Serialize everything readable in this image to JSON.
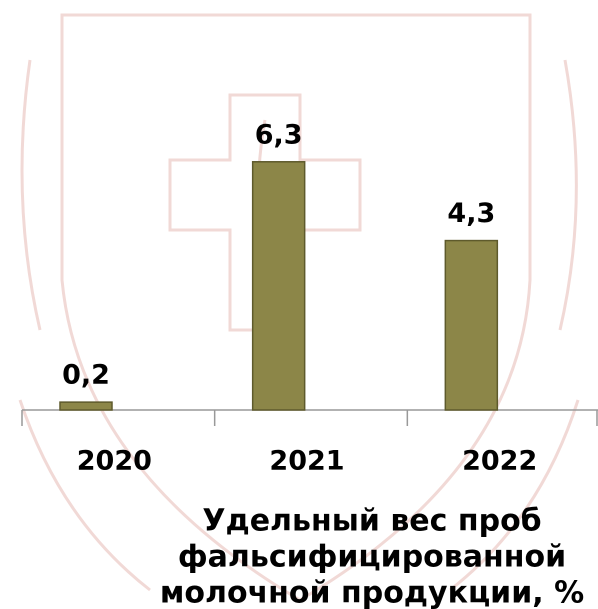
{
  "chart_data": {
    "type": "bar",
    "title_lines": [
      "Удельный вес  проб",
      "фальсифицированной",
      "молочной продукции, %"
    ],
    "categories": [
      "2020",
      "2021",
      "2022"
    ],
    "values": [
      0.2,
      6.3,
      4.3
    ],
    "value_labels": [
      "0,2",
      "6,3",
      "4,3"
    ],
    "color": "#8c8648"
  }
}
